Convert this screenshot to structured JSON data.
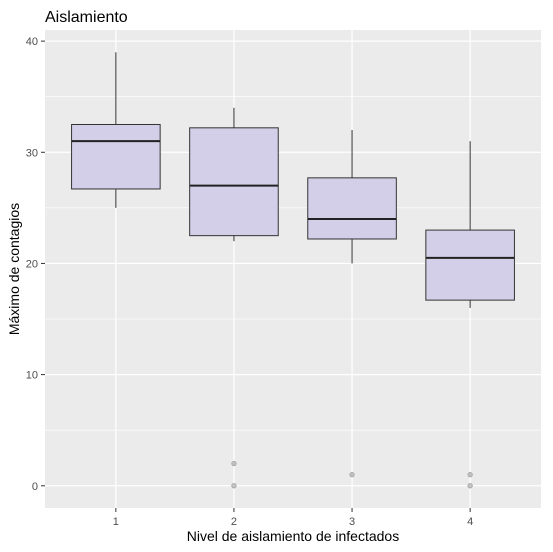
{
  "chart_data": {
    "type": "boxplot",
    "title": "Aislamiento",
    "xlabel": "Nivel de aislamiento de infectados",
    "ylabel": "Máximo de contagios",
    "categories": [
      "1",
      "2",
      "3",
      "4"
    ],
    "ylim": [
      -2,
      41
    ],
    "yticks": [
      0,
      10,
      20,
      30,
      40
    ],
    "grid": true,
    "box_fill": "#d3cfe8",
    "box_stroke": "#333333",
    "panel_background": "#ebebeb",
    "grid_color": "#ffffff",
    "outlier_color": "#b3b3b3",
    "boxes": [
      {
        "category": "1",
        "min": 25,
        "q1": 26.7,
        "median": 31,
        "q3": 32.5,
        "max": 39,
        "outliers": []
      },
      {
        "category": "2",
        "min": 22,
        "q1": 22.5,
        "median": 27,
        "q3": 32.2,
        "max": 34,
        "outliers": [
          2,
          0
        ]
      },
      {
        "category": "3",
        "min": 20,
        "q1": 22.2,
        "median": 24,
        "q3": 27.7,
        "max": 32,
        "outliers": [
          1
        ]
      },
      {
        "category": "4",
        "min": 16,
        "q1": 16.7,
        "median": 20.5,
        "q3": 23,
        "max": 31,
        "outliers": [
          1,
          0
        ]
      }
    ]
  }
}
